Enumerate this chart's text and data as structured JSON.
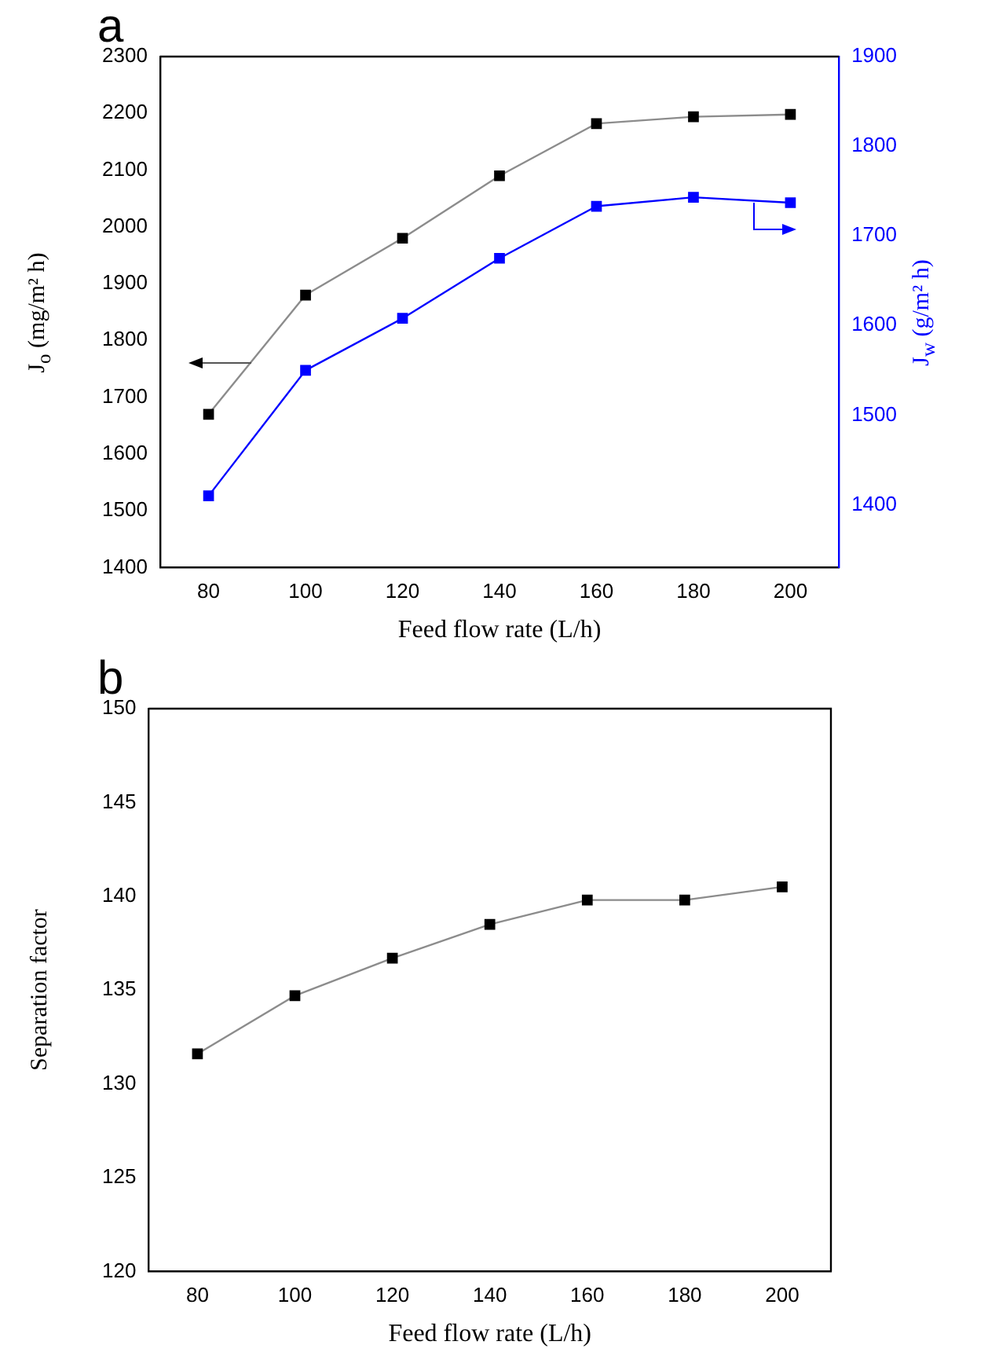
{
  "chart_data": [
    {
      "type": "line",
      "title": "a",
      "xlabel": "Feed flow rate (L/h)",
      "ylabel": "J$_{o}$ (mg/m² h)",
      "y2label": "J$_{w}$ (g/m² h)",
      "x": [
        80,
        100,
        120,
        140,
        160,
        180,
        200
      ],
      "xlim": [
        70,
        210
      ],
      "xticks": [
        80,
        100,
        120,
        140,
        160,
        180,
        200
      ],
      "ylim": [
        1400,
        2300
      ],
      "yticks": [
        1400,
        1500,
        1600,
        1700,
        1800,
        1900,
        2000,
        2100,
        2200,
        2300
      ],
      "y2lim": [
        1330,
        1900
      ],
      "y2ticks": [
        1400,
        1500,
        1600,
        1700,
        1800,
        1900
      ],
      "marker": "square",
      "grid": false,
      "series": [
        {
          "color": "#000000",
          "values": [
            1670,
            1880,
            1980,
            2090,
            2182,
            2194,
            2198
          ]
        },
        {
          "color": "#0000ff",
          "axis": "y2",
          "values": [
            1410,
            1550,
            1608,
            1675,
            1733,
            1743,
            1737
          ]
        }
      ]
    },
    {
      "type": "line",
      "title": "b",
      "xlabel": "Feed flow rate (L/h)",
      "ylabel": "Separation factor",
      "x": [
        80,
        100,
        120,
        140,
        160,
        180,
        200
      ],
      "xlim": [
        70,
        210
      ],
      "xticks": [
        80,
        100,
        120,
        140,
        160,
        180,
        200
      ],
      "ylim": [
        120,
        150
      ],
      "yticks": [
        120,
        125,
        130,
        135,
        140,
        145,
        150
      ],
      "marker": "square",
      "grid": false,
      "series": [
        {
          "color": "#000000",
          "values": [
            131.6,
            134.7,
            136.7,
            138.5,
            139.8,
            139.8,
            140.5
          ]
        }
      ]
    }
  ]
}
